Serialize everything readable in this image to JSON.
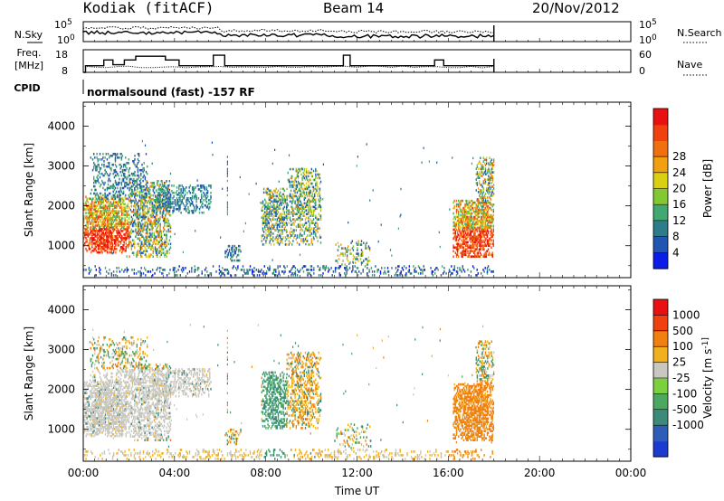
{
  "header": {
    "station": "Kodiak (fitACF)",
    "beam": "Beam 14",
    "date": "20/Nov/2012",
    "cpid_label": "CPID",
    "cpid_text": "normalsound (fast) -157 RF"
  },
  "chart_data": [
    {
      "type": "line",
      "panel": "noise",
      "left_label": "N.Sky",
      "right_label": "N.Search",
      "left_ticks": [
        "10^5",
        "10^0"
      ],
      "right_ticks": [
        "10^5",
        "10^0"
      ]
    },
    {
      "type": "line",
      "panel": "frequency",
      "left_label": "Freq.",
      "left_unit": "[MHz]",
      "right_label": "Nave",
      "left_ticks": [
        "18",
        "8"
      ],
      "right_ticks": [
        "60",
        "0"
      ],
      "series": [
        {
          "name": "Freq.",
          "x": [
            0,
            0.1,
            0.1,
            0.9,
            0.9,
            1.3,
            1.3,
            1.8,
            1.8,
            2.3,
            2.3,
            3.6,
            3.6,
            4.2,
            4.2,
            5.7,
            5.7,
            6.2,
            6.2,
            11.4,
            11.4,
            11.7,
            11.7,
            15.4,
            15.4,
            15.8,
            15.8,
            18.0
          ],
          "y": [
            8,
            8,
            11.5,
            11.5,
            14.5,
            14.5,
            12,
            12,
            14.5,
            14.5,
            16.5,
            16.5,
            14.5,
            14.5,
            11.5,
            11.5,
            17,
            17,
            11.5,
            11.5,
            17,
            17,
            11.5,
            11.5,
            14.5,
            14.5,
            11.5,
            11.5
          ]
        }
      ]
    },
    {
      "type": "heatmap",
      "panel": "power",
      "ylabel": "Slant Range [km]",
      "ylim": [
        200,
        4600
      ],
      "yticks": [
        1000,
        2000,
        3000,
        4000
      ],
      "colorbar": {
        "label": "Power [dB]",
        "ticks": [
          4,
          8,
          12,
          16,
          20,
          24,
          28
        ],
        "colors": [
          "#0a1de8",
          "#2255b2",
          "#2e7c8a",
          "#40a870",
          "#82c830",
          "#d8d010",
          "#f0a010",
          "#f07010",
          "#f04010",
          "#e81010"
        ]
      }
    },
    {
      "type": "heatmap",
      "panel": "velocity",
      "ylabel": "Slant Range [km]",
      "xlabel": "Time UT",
      "ylim": [
        200,
        4600
      ],
      "yticks": [
        1000,
        2000,
        3000,
        4000
      ],
      "xticks": [
        "00:00",
        "04:00",
        "08:00",
        "12:00",
        "16:00",
        "20:00",
        "00:00"
      ],
      "x_hours": [
        0,
        4,
        8,
        12,
        16,
        20,
        24
      ],
      "colorbar": {
        "label": "Velocity [m s^-1]",
        "ticks": [
          "1000",
          "500",
          "100",
          "25",
          "-25",
          "-100",
          "-500",
          "-1000"
        ],
        "colors": [
          "#1a3ad0",
          "#2e5db8",
          "#3c8a7a",
          "#4ca860",
          "#7cd040",
          "#c8c8c0",
          "#f0b020",
          "#f08010",
          "#f04010",
          "#e81010"
        ]
      }
    }
  ]
}
